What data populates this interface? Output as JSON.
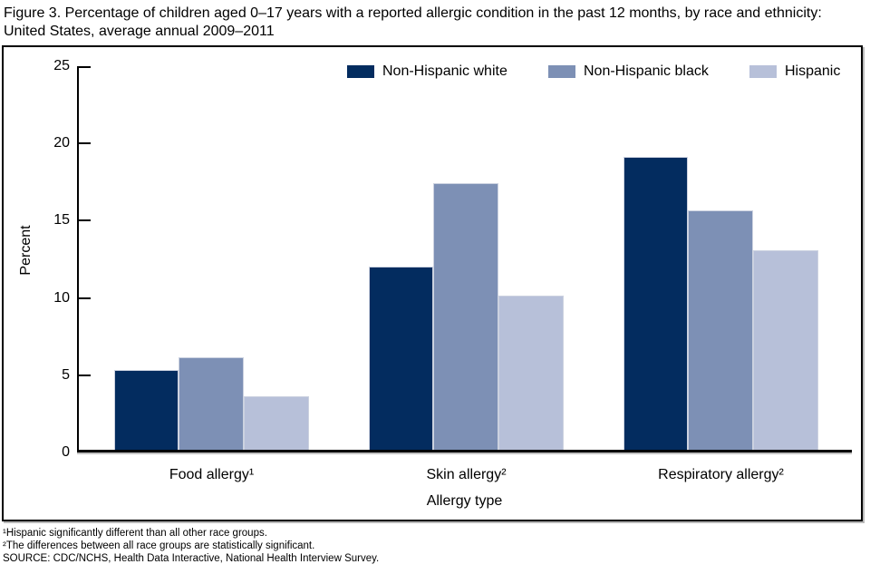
{
  "title": "Figure 3. Percentage of children aged 0–17 years with a reported allergic condition in the past 12 months, by race and ethnicity: United States, average annual 2009–2011",
  "chart_data": {
    "type": "bar",
    "categories": [
      "Food allergy¹",
      "Skin allergy²",
      "Respiratory allergy²"
    ],
    "series": [
      {
        "name": "Non-Hispanic white",
        "color": "#032c5f",
        "values": [
          5.3,
          12.0,
          19.1
        ]
      },
      {
        "name": "Non-Hispanic black",
        "color": "#7d90b5",
        "values": [
          6.1,
          17.4,
          15.6
        ]
      },
      {
        "name": "Hispanic",
        "color": "#b7c0d9",
        "values": [
          3.6,
          10.1,
          13.0
        ]
      }
    ],
    "xlabel": "Allergy type",
    "ylabel": "Percent",
    "ylim": [
      0,
      25
    ],
    "yticks": [
      0,
      5,
      10,
      15,
      20,
      25
    ],
    "legend_position": "top-inside",
    "grid": false,
    "axis_color": "#000000"
  },
  "footnotes": [
    "¹Hispanic significantly different than all other race groups.",
    "²The differences between all race groups are statistically significant."
  ],
  "source": "SOURCE: CDC/NCHS, Health Data Interactive, National Health Interview Survey."
}
